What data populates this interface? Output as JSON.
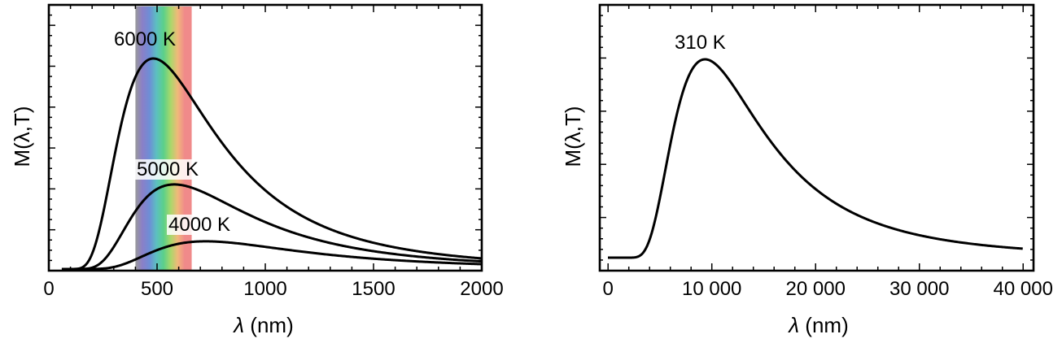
{
  "chart_data": [
    {
      "type": "line",
      "xlabel_symbol": "λ",
      "xlabel_unit": "(nm)",
      "ylabel": "M(λ,T)",
      "xlim": [
        0,
        2000
      ],
      "x_ticks": [
        0,
        500,
        1000,
        1500,
        2000
      ],
      "x_tick_labels": [
        "0",
        "500",
        "1000",
        "1500",
        "2000"
      ],
      "y_tick_labels": [],
      "grid": false,
      "visible_band_nm": [
        400,
        660
      ],
      "series": [
        {
          "name": "6000 K",
          "temperature_K": 6000
        },
        {
          "name": "5000 K",
          "temperature_K": 5000
        },
        {
          "name": "4000 K",
          "temperature_K": 4000
        }
      ],
      "annotations": [
        "6000 K",
        "5000 K",
        "4000 K"
      ]
    },
    {
      "type": "line",
      "xlabel_symbol": "λ",
      "xlabel_unit": "(nm)",
      "ylabel": "M(λ,T)",
      "xlim": [
        -800,
        41000
      ],
      "x_ticks": [
        0,
        10000,
        20000,
        30000,
        40000
      ],
      "x_tick_labels": [
        "0",
        "10 000",
        "20 000",
        "30 000",
        "40 000"
      ],
      "y_tick_labels": [],
      "grid": false,
      "series": [
        {
          "name": "310 K",
          "temperature_K": 310
        }
      ],
      "annotations": [
        "310 K"
      ]
    }
  ],
  "colors": {
    "curve": "#000000",
    "spectrum": [
      "#9a9a9a",
      "#8a7fc8",
      "#6e8ed6",
      "#5cc0c0",
      "#5bd08a",
      "#a8d86a",
      "#f0b97a",
      "#f08a8a",
      "#f08a8a"
    ]
  }
}
